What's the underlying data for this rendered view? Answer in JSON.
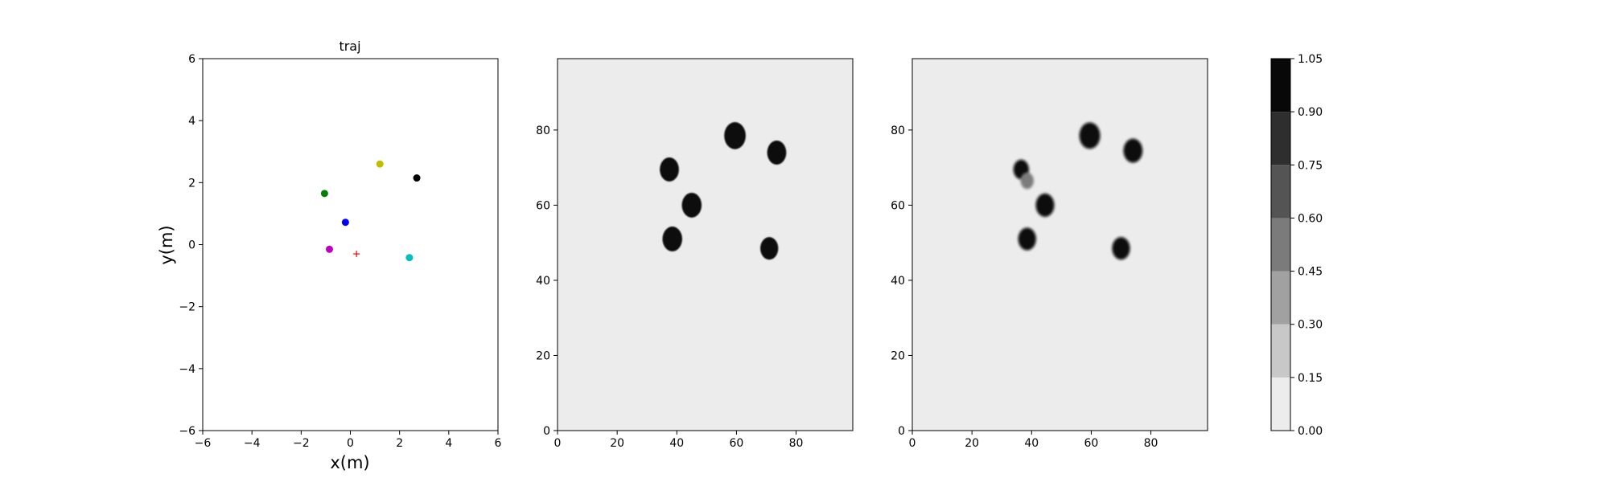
{
  "chart_data": [
    {
      "type": "scatter",
      "title": "traj",
      "xlabel": "x(m)",
      "ylabel": "y(m)",
      "xlim": [
        -6,
        6
      ],
      "ylim": [
        -6,
        6
      ],
      "xticks": [
        "−6",
        "−4",
        "−2",
        "0",
        "2",
        "4",
        "6"
      ],
      "yticks": [
        "−6",
        "−4",
        "−2",
        "0",
        "2",
        "4",
        "6"
      ],
      "grid": false,
      "points": [
        {
          "x": 1.2,
          "y": 2.6,
          "color": "#bfbf00",
          "marker": "circle"
        },
        {
          "x": 2.7,
          "y": 2.15,
          "color": "#000000",
          "marker": "circle"
        },
        {
          "x": -1.05,
          "y": 1.65,
          "color": "#008000",
          "marker": "circle"
        },
        {
          "x": -0.2,
          "y": 0.72,
          "color": "#0000ff",
          "marker": "circle"
        },
        {
          "x": -0.85,
          "y": -0.15,
          "color": "#bf00bf",
          "marker": "circle"
        },
        {
          "x": 2.4,
          "y": -0.42,
          "color": "#00bfbf",
          "marker": "circle"
        },
        {
          "x": 0.25,
          "y": -0.3,
          "color": "#ff0000",
          "marker": "plus"
        }
      ]
    },
    {
      "type": "heatmap",
      "title": "",
      "xlim": [
        0,
        99
      ],
      "ylim": [
        0,
        99
      ],
      "xticks": [
        "0",
        "20",
        "40",
        "60",
        "80"
      ],
      "yticks": [
        "0",
        "20",
        "40",
        "60",
        "80"
      ],
      "background_value": 0.0,
      "blobs": [
        {
          "cx": 59.5,
          "cy": 78.5,
          "r": 3.6,
          "value": 1.0
        },
        {
          "cx": 73.5,
          "cy": 74.0,
          "r": 3.2,
          "value": 1.0
        },
        {
          "cx": 37.5,
          "cy": 69.5,
          "r": 3.2,
          "value": 1.0
        },
        {
          "cx": 45.0,
          "cy": 60.0,
          "r": 3.3,
          "value": 1.0
        },
        {
          "cx": 38.5,
          "cy": 51.0,
          "r": 3.3,
          "value": 1.0
        },
        {
          "cx": 71.0,
          "cy": 48.5,
          "r": 3.0,
          "value": 1.0
        }
      ]
    },
    {
      "type": "heatmap",
      "title": "",
      "xlim": [
        0,
        99
      ],
      "ylim": [
        0,
        99
      ],
      "xticks": [
        "0",
        "20",
        "40",
        "60",
        "80"
      ],
      "yticks": [
        "0",
        "20",
        "40",
        "60",
        "80"
      ],
      "background_value": 0.0,
      "blobs": [
        {
          "cx": 59.5,
          "cy": 78.5,
          "r": 3.5,
          "value": 1.0
        },
        {
          "cx": 74.0,
          "cy": 74.5,
          "r": 3.2,
          "value": 1.0
        },
        {
          "cx": 36.5,
          "cy": 69.5,
          "r": 2.6,
          "value": 0.95
        },
        {
          "cx": 38.5,
          "cy": 66.5,
          "r": 2.2,
          "value": 0.45
        },
        {
          "cx": 44.5,
          "cy": 60.0,
          "r": 3.1,
          "value": 1.0
        },
        {
          "cx": 38.5,
          "cy": 51.0,
          "r": 3.0,
          "value": 1.0
        },
        {
          "cx": 70.0,
          "cy": 48.5,
          "r": 3.0,
          "value": 1.0
        }
      ]
    }
  ],
  "colorbar": {
    "levels": [
      0.0,
      0.15,
      0.3,
      0.45,
      0.6,
      0.75,
      0.9,
      1.05
    ],
    "tick_labels": [
      "0.00",
      "0.15",
      "0.30",
      "0.45",
      "0.60",
      "0.75",
      "0.90",
      "1.05"
    ],
    "colors": [
      "#ececec",
      "#c8c8c8",
      "#a1a1a1",
      "#7b7b7b",
      "#545454",
      "#2e2e2e",
      "#080808"
    ]
  }
}
